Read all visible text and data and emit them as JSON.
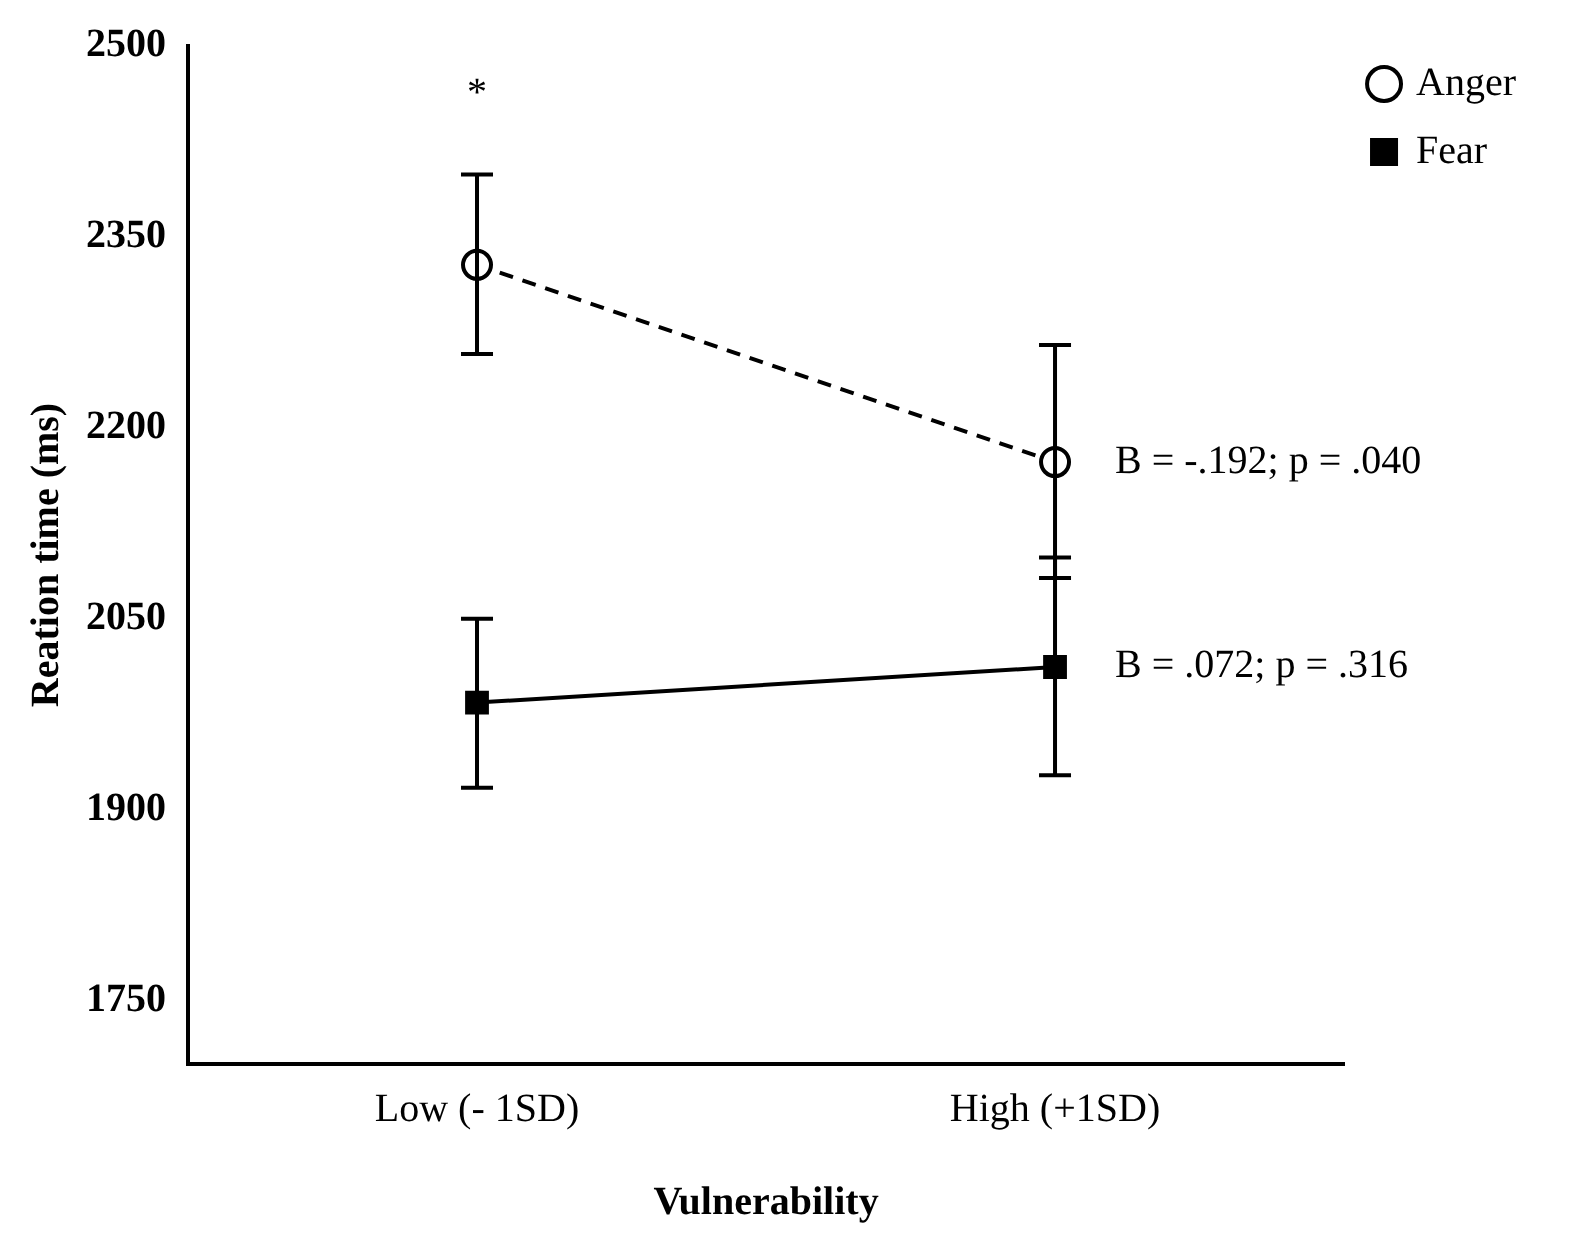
{
  "chart_data": {
    "type": "line",
    "xlabel": "Vulnerability",
    "ylabel": "Reation time (ms)",
    "categories": [
      "Low (- 1SD)",
      "High (+1SD)"
    ],
    "series": [
      {
        "name": "Anger",
        "color": "#000000",
        "values": [
          2328,
          2173
        ],
        "errors": [
          [
            2258,
            2399
          ],
          [
            2082,
            2265
          ]
        ],
        "marker": "circle",
        "line_style": "dashed"
      },
      {
        "name": "Fear",
        "color": "#000000",
        "values": [
          1984,
          2012
        ],
        "errors": [
          [
            1917,
            2050
          ],
          [
            1927,
            2098
          ]
        ],
        "marker": "square",
        "line_style": "solid"
      }
    ],
    "ylim": [
      1700,
      2500
    ],
    "yticks": [
      1750,
      1900,
      2050,
      2200,
      2350,
      2500
    ],
    "grid": false,
    "legend": "top right",
    "annotations": [
      "*",
      {
        "text": "B = -.192; p = .040",
        "x": "High (+1SD)",
        "y": 2173
      },
      {
        "text": "B = .072; p = .316",
        "x": "High (+1SD)",
        "y": 2012
      }
    ]
  }
}
